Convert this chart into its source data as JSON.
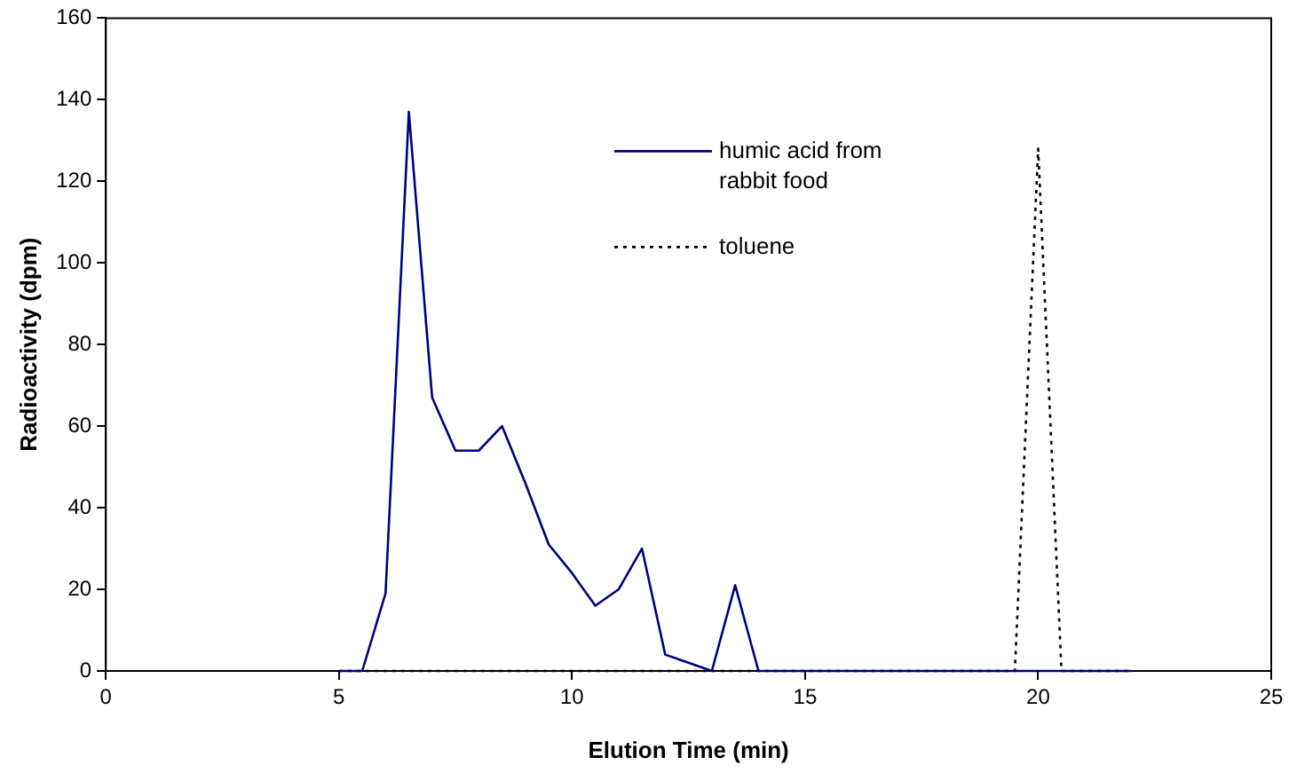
{
  "chart_data": {
    "type": "line",
    "xlabel": "Elution Time (min)",
    "ylabel": "Radioactivity (dpm)",
    "x": [
      5,
      5.5,
      6,
      6.5,
      7,
      7.5,
      8,
      8.5,
      9,
      9.5,
      10,
      10.5,
      11,
      11.5,
      12,
      12.5,
      13,
      13.5,
      14,
      14.5,
      15,
      15.5,
      16,
      16.5,
      17,
      17.5,
      18,
      18.5,
      19,
      19.5,
      20,
      20.5,
      21,
      21.5,
      22
    ],
    "series": [
      {
        "name": "humic acid from rabbit food",
        "color": "#000080",
        "line_style": "solid",
        "values": [
          0,
          0,
          19,
          137,
          67,
          54,
          54,
          60,
          46,
          31,
          24,
          16,
          20,
          30,
          4,
          2,
          0,
          21,
          0,
          0,
          0,
          0,
          0,
          0,
          0,
          0,
          0,
          0,
          0,
          0,
          0,
          0,
          0,
          0,
          0
        ]
      },
      {
        "name": "toluene",
        "color": "#000000",
        "line_style": "dotted",
        "values": [
          0,
          0,
          0,
          0,
          0,
          0,
          0,
          0,
          0,
          0,
          0,
          0,
          0,
          0,
          0,
          0,
          0,
          0,
          0,
          0,
          0,
          0,
          0,
          0,
          0,
          0,
          0,
          0,
          0,
          0,
          128,
          0,
          0,
          0,
          0
        ]
      }
    ],
    "xlim": [
      0,
      25
    ],
    "xticks": [
      0,
      5,
      10,
      15,
      20,
      25
    ],
    "ylim": [
      0,
      160
    ],
    "yticks": [
      0,
      20,
      40,
      60,
      80,
      100,
      120,
      140,
      160
    ],
    "grid": false,
    "legend": "top right",
    "marker": "none"
  }
}
